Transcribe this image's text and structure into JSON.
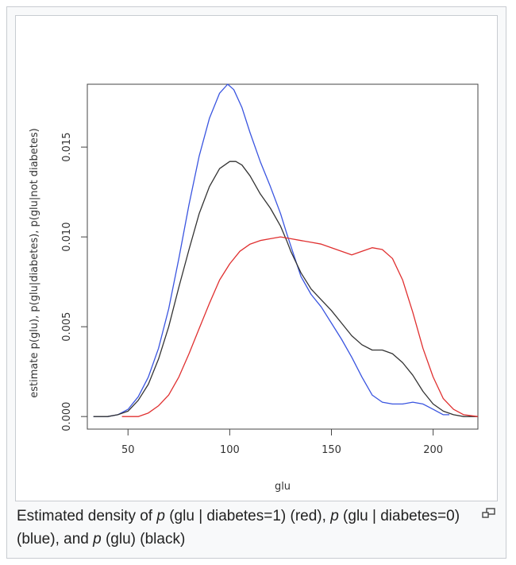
{
  "caption": {
    "part1": "Estimated density of ",
    "p1": "p",
    "part2": " (glu | diabetes=1) (red), ",
    "p2": "p",
    "part3": " (glu | diabetes=0) (blue), and ",
    "p3": "p",
    "part4": " (glu) (black)"
  },
  "magnify_icon": "magnify-clip-icon",
  "chart_data": {
    "type": "line",
    "title": "",
    "xlabel": "glu",
    "ylabel": "estimate p(glu), p(glu|diabetes), p(glu|not diabetes)",
    "xlim": [
      30,
      222
    ],
    "ylim": [
      -0.0007,
      0.0185
    ],
    "xticks": [
      50,
      100,
      150,
      200
    ],
    "yticks": [
      0.0,
      0.005,
      0.01,
      0.015
    ],
    "ytick_labels": [
      "0.000",
      "0.005",
      "0.010",
      "0.015"
    ],
    "grid": false,
    "series": [
      {
        "color": "#3a55e0",
        "points": [
          [
            33,
            0
          ],
          [
            40,
            0
          ],
          [
            45,
            0.0001
          ],
          [
            50,
            0.0004
          ],
          [
            55,
            0.0011
          ],
          [
            60,
            0.0022
          ],
          [
            65,
            0.0038
          ],
          [
            70,
            0.006
          ],
          [
            75,
            0.0088
          ],
          [
            80,
            0.0118
          ],
          [
            85,
            0.0145
          ],
          [
            90,
            0.0166
          ],
          [
            95,
            0.018
          ],
          [
            99,
            0.0185
          ],
          [
            102,
            0.0182
          ],
          [
            106,
            0.0172
          ],
          [
            110,
            0.0158
          ],
          [
            115,
            0.0142
          ],
          [
            120,
            0.0128
          ],
          [
            125,
            0.0113
          ],
          [
            128,
            0.0102
          ],
          [
            130,
            0.0095
          ],
          [
            135,
            0.0078
          ],
          [
            140,
            0.0068
          ],
          [
            145,
            0.0061
          ],
          [
            150,
            0.0052
          ],
          [
            155,
            0.0043
          ],
          [
            160,
            0.0033
          ],
          [
            165,
            0.0022
          ],
          [
            170,
            0.0012
          ],
          [
            175,
            0.0008
          ],
          [
            180,
            0.0007
          ],
          [
            185,
            0.0007
          ],
          [
            190,
            0.0008
          ],
          [
            195,
            0.0007
          ],
          [
            200,
            0.0004
          ],
          [
            205,
            0.0001
          ],
          [
            208,
            0.0001
          ]
        ]
      },
      {
        "color": "#333333",
        "points": [
          [
            33,
            0
          ],
          [
            40,
            0
          ],
          [
            45,
            0.0001
          ],
          [
            50,
            0.0003
          ],
          [
            55,
            0.0009
          ],
          [
            60,
            0.0018
          ],
          [
            65,
            0.0032
          ],
          [
            70,
            0.005
          ],
          [
            75,
            0.0072
          ],
          [
            80,
            0.0093
          ],
          [
            85,
            0.0113
          ],
          [
            90,
            0.0128
          ],
          [
            95,
            0.0138
          ],
          [
            100,
            0.0142
          ],
          [
            103,
            0.0142
          ],
          [
            106,
            0.014
          ],
          [
            110,
            0.0134
          ],
          [
            115,
            0.0124
          ],
          [
            120,
            0.0116
          ],
          [
            125,
            0.0106
          ],
          [
            128,
            0.0098
          ],
          [
            130,
            0.0092
          ],
          [
            135,
            0.008
          ],
          [
            140,
            0.0071
          ],
          [
            145,
            0.0065
          ],
          [
            150,
            0.0059
          ],
          [
            155,
            0.0052
          ],
          [
            160,
            0.0045
          ],
          [
            165,
            0.004
          ],
          [
            170,
            0.0037
          ],
          [
            175,
            0.0037
          ],
          [
            180,
            0.0035
          ],
          [
            185,
            0.003
          ],
          [
            190,
            0.0023
          ],
          [
            195,
            0.0014
          ],
          [
            200,
            0.0007
          ],
          [
            205,
            0.0003
          ],
          [
            210,
            0.0001
          ],
          [
            215,
            0
          ],
          [
            222,
            0
          ]
        ]
      },
      {
        "color": "#e03030",
        "points": [
          [
            47,
            0
          ],
          [
            50,
            0
          ],
          [
            55,
            0
          ],
          [
            60,
            0.0002
          ],
          [
            65,
            0.0006
          ],
          [
            70,
            0.0012
          ],
          [
            75,
            0.0022
          ],
          [
            80,
            0.0035
          ],
          [
            85,
            0.0049
          ],
          [
            90,
            0.0063
          ],
          [
            95,
            0.0076
          ],
          [
            100,
            0.0085
          ],
          [
            105,
            0.0092
          ],
          [
            110,
            0.0096
          ],
          [
            115,
            0.0098
          ],
          [
            120,
            0.0099
          ],
          [
            125,
            0.01
          ],
          [
            130,
            0.0099
          ],
          [
            135,
            0.0098
          ],
          [
            140,
            0.0097
          ],
          [
            145,
            0.0096
          ],
          [
            150,
            0.0094
          ],
          [
            155,
            0.0092
          ],
          [
            160,
            0.009
          ],
          [
            165,
            0.0092
          ],
          [
            170,
            0.0094
          ],
          [
            175,
            0.0093
          ],
          [
            180,
            0.0088
          ],
          [
            185,
            0.0076
          ],
          [
            190,
            0.0058
          ],
          [
            195,
            0.0038
          ],
          [
            200,
            0.0022
          ],
          [
            205,
            0.001
          ],
          [
            210,
            0.0004
          ],
          [
            215,
            0.0001
          ],
          [
            222,
            0
          ]
        ]
      }
    ]
  }
}
